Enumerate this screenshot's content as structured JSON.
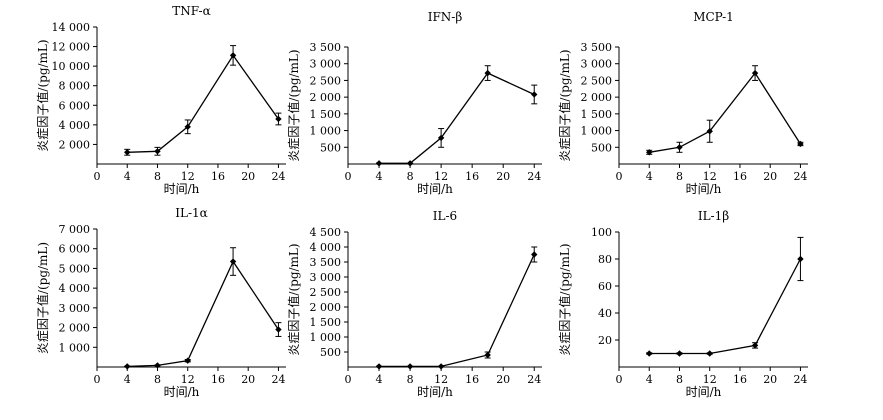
{
  "chart_data": [
    {
      "type": "line",
      "title": "TNF-α",
      "xlabel": "时间/h",
      "ylabel": "炎症因子值/(pg/mL)",
      "x": [
        4,
        8,
        12,
        18,
        24
      ],
      "y": [
        1200,
        1300,
        3800,
        11100,
        4600
      ],
      "err": [
        300,
        400,
        700,
        1000,
        600
      ],
      "xticks": [
        0,
        4,
        8,
        12,
        16,
        20,
        24
      ],
      "xtick_labels": [
        "0",
        "4",
        "8",
        "12",
        "16",
        "20",
        "24"
      ],
      "xlim": [
        0,
        25
      ],
      "ylim": [
        0,
        14000
      ],
      "yticks": [
        2000,
        4000,
        6000,
        8000,
        10000,
        12000,
        14000
      ],
      "ytick_labels": [
        "2 000",
        "4 000",
        "6 000",
        "8 000",
        "10 000",
        "12 000",
        "14 000"
      ]
    },
    {
      "type": "line",
      "title": "IFN-β",
      "xlabel": "时间/h",
      "ylabel": "炎症因子值/(pg/mL)",
      "x": [
        4,
        8,
        12,
        18,
        24
      ],
      "y": [
        20,
        20,
        780,
        2720,
        2080
      ],
      "err": [
        10,
        10,
        280,
        220,
        280
      ],
      "xticks": [
        0,
        4,
        8,
        12,
        16,
        20,
        24
      ],
      "xtick_labels": [
        "0",
        "4",
        "8",
        "12",
        "16",
        "20",
        "24"
      ],
      "xlim": [
        0,
        25
      ],
      "ylim": [
        0,
        3500
      ],
      "yticks": [
        500,
        1000,
        1500,
        2000,
        2500,
        3000,
        3500
      ],
      "ytick_labels": [
        "500",
        "1 000",
        "1 500",
        "2 000",
        "2 500",
        "3 000",
        "3 500"
      ]
    },
    {
      "type": "line",
      "title": "MCP-1",
      "xlabel": "时间/h",
      "ylabel": "炎症因子值/(pg/mL)",
      "x": [
        4,
        8,
        12,
        18,
        24
      ],
      "y": [
        350,
        500,
        980,
        2720,
        600
      ],
      "err": [
        60,
        150,
        330,
        220,
        50
      ],
      "xticks": [
        0,
        4,
        8,
        12,
        16,
        20,
        24
      ],
      "xtick_labels": [
        "0",
        "4",
        "8",
        "12",
        "16",
        "20",
        "24"
      ],
      "xlim": [
        0,
        25
      ],
      "ylim": [
        0,
        3500
      ],
      "yticks": [
        500,
        1000,
        1500,
        2000,
        2500,
        3000,
        3500
      ],
      "ytick_labels": [
        "500",
        "1 000",
        "1 500",
        "2 000",
        "2 500",
        "3 000",
        "3 500"
      ]
    },
    {
      "type": "line",
      "title": "IL-1α",
      "xlabel": "时间/h",
      "ylabel": "炎症因子值/(pg/mL)",
      "x": [
        4,
        8,
        12,
        18,
        24
      ],
      "y": [
        30,
        80,
        320,
        5350,
        1900
      ],
      "err": [
        10,
        20,
        60,
        700,
        350
      ],
      "xticks": [
        0,
        4,
        8,
        12,
        16,
        20,
        24
      ],
      "xtick_labels": [
        "0",
        "4",
        "8",
        "12",
        "16",
        "20",
        "24"
      ],
      "xlim": [
        0,
        25
      ],
      "ylim": [
        0,
        7000
      ],
      "yticks": [
        1000,
        2000,
        3000,
        4000,
        5000,
        6000,
        7000
      ],
      "ytick_labels": [
        "1 000",
        "2 000",
        "3 000",
        "4 000",
        "5 000",
        "6 000",
        "7 000"
      ]
    },
    {
      "type": "line",
      "title": "IL-6",
      "xlabel": "时间/h",
      "ylabel": "炎症因子值/(pg/mL)",
      "x": [
        4,
        8,
        12,
        18,
        24
      ],
      "y": [
        20,
        20,
        20,
        400,
        3750
      ],
      "err": [
        5,
        5,
        5,
        100,
        250
      ],
      "xticks": [
        0,
        4,
        8,
        12,
        16,
        20,
        24
      ],
      "xtick_labels": [
        "0",
        "4",
        "8",
        "12",
        "16",
        "20",
        "24"
      ],
      "xlim": [
        0,
        25
      ],
      "ylim": [
        0,
        4500
      ],
      "yticks": [
        500,
        1000,
        1500,
        2000,
        2500,
        3000,
        3500,
        4000,
        4500
      ],
      "ytick_labels": [
        "500",
        "1 000",
        "1 500",
        "2 000",
        "2 500",
        "3 000",
        "3 500",
        "4 000",
        "4 500"
      ]
    },
    {
      "type": "line",
      "title": "IL-1β",
      "xlabel": "时间/h",
      "ylabel": "炎症因子值/(pg/mL)",
      "x": [
        4,
        8,
        12,
        18,
        24
      ],
      "y": [
        10,
        10,
        10,
        16,
        80
      ],
      "err": [
        0.5,
        0.5,
        0.5,
        2,
        16
      ],
      "xticks": [
        0,
        4,
        8,
        12,
        16,
        20,
        24
      ],
      "xtick_labels": [
        "0",
        "4",
        "8",
        "12",
        "16",
        "20",
        "24"
      ],
      "xlim": [
        0,
        25
      ],
      "ylim": [
        0,
        100
      ],
      "yticks": [
        20,
        40,
        60,
        80,
        100
      ],
      "ytick_labels": [
        "20",
        "40",
        "60",
        "80",
        "100"
      ]
    }
  ]
}
